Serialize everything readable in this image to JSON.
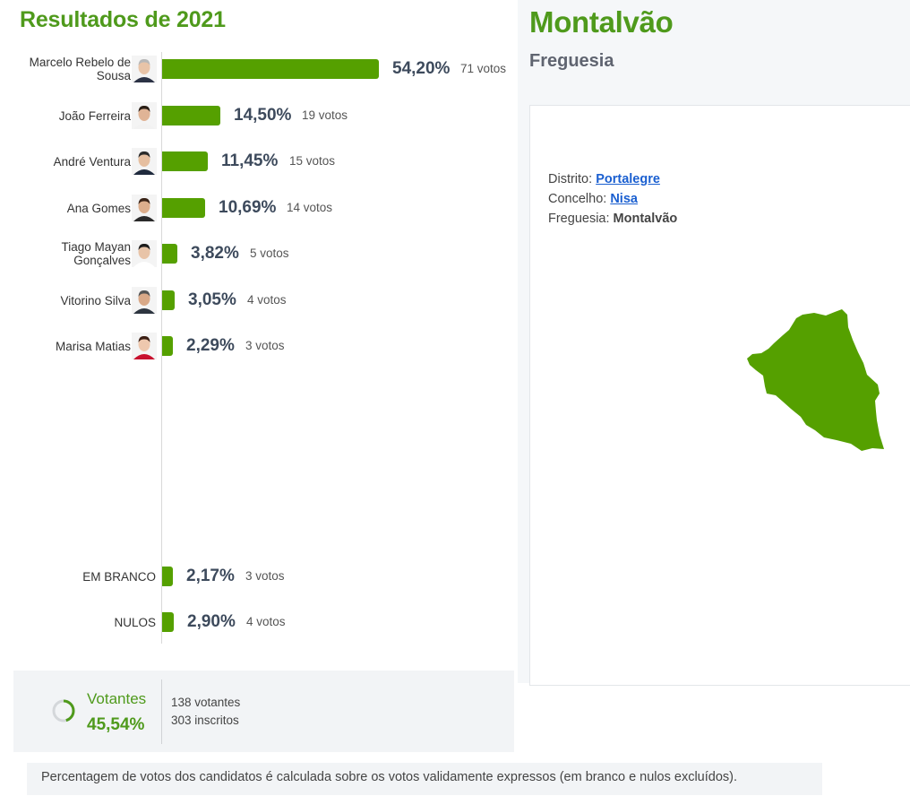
{
  "results": {
    "title": "Resultados de 2021"
  },
  "chart_data": {
    "type": "bar",
    "orientation": "horizontal",
    "categories": [
      "Marcelo Rebelo de Sousa",
      "João Ferreira",
      "André Ventura",
      "Ana Gomes",
      "Tiago Mayan Gonçalves",
      "Vitorino Silva",
      "Marisa Matias",
      "EM BRANCO",
      "NULOS"
    ],
    "values": [
      54.2,
      14.5,
      11.45,
      10.69,
      3.82,
      3.05,
      2.29,
      2.17,
      2.9
    ],
    "value_labels": [
      "54,20%",
      "14,50%",
      "11,45%",
      "10,69%",
      "3,82%",
      "3,05%",
      "2,29%",
      "2,17%",
      "2,90%"
    ],
    "votes": [
      71,
      19,
      15,
      14,
      5,
      4,
      3,
      3,
      4
    ],
    "vote_labels": [
      "71 votos",
      "19 votos",
      "15 votos",
      "14 votos",
      "5 votos",
      "4 votos",
      "3 votos",
      "3 votos",
      "4 votos"
    ],
    "has_photo": [
      true,
      true,
      true,
      true,
      true,
      true,
      true,
      false,
      false
    ],
    "xlim": [
      0,
      54.2
    ],
    "bar_color": "#55a000",
    "grid": false
  },
  "turnout": {
    "label": "Votantes",
    "percent": "45,54%",
    "fraction": 0.4554,
    "voters": "138 votantes",
    "registered": "303 inscritos"
  },
  "footnote": "Percentagem de votos dos candidatos é calculada sobre os votos validamente expressos (em branco e nulos excluídos).",
  "place": {
    "name": "Montalvão",
    "type": "Freguesia",
    "district_label": "Distrito:",
    "district": "Portalegre",
    "municipality_label": "Concelho:",
    "municipality": "Nisa",
    "parish_label": "Freguesia:",
    "parish": "Montalvão"
  },
  "colors": {
    "accent": "#4f9a1c",
    "bar": "#55a000",
    "map_fill": "#55a000",
    "link": "#1a5fd0"
  },
  "icons": [
    "candidate-photo-icon",
    "turnout-ring-icon",
    "parish-map-shape-icon"
  ]
}
